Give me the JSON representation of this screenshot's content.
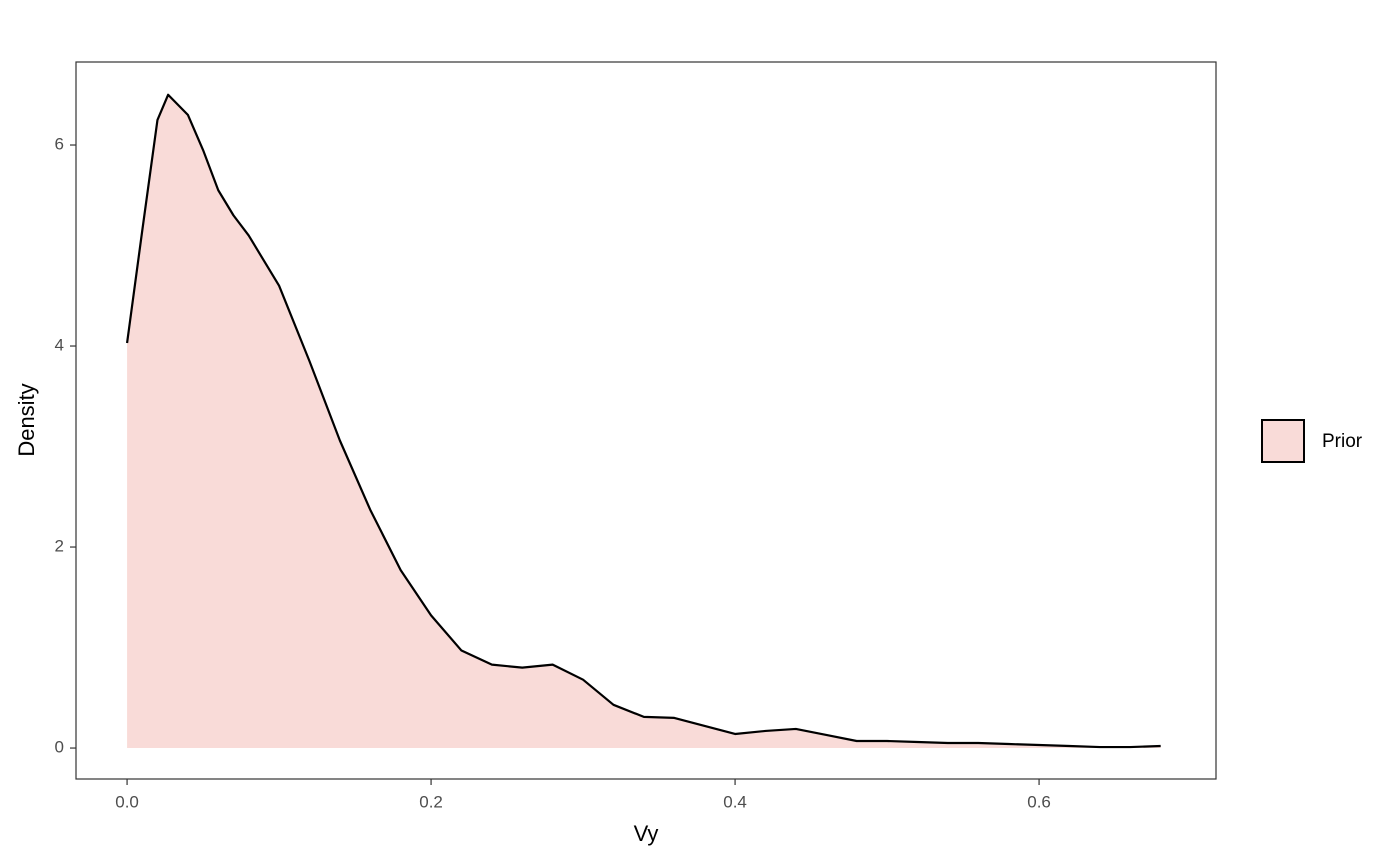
{
  "chart_data": {
    "type": "area",
    "x_label": "Vy",
    "y_label": "Density",
    "x": [
      0,
      0.01,
      0.02,
      0.027,
      0.04,
      0.05,
      0.06,
      0.07,
      0.08,
      0.1,
      0.12,
      0.14,
      0.16,
      0.18,
      0.2,
      0.22,
      0.24,
      0.26,
      0.28,
      0.3,
      0.32,
      0.34,
      0.36,
      0.38,
      0.4,
      0.42,
      0.44,
      0.46,
      0.48,
      0.5,
      0.52,
      0.54,
      0.56,
      0.58,
      0.6,
      0.62,
      0.64,
      0.66,
      0.68
    ],
    "series": [
      {
        "name": "Prior",
        "color": "#f9dbd8",
        "line_color": "#000000",
        "values": [
          4.03,
          5.15,
          6.25,
          6.5,
          6.3,
          5.95,
          5.55,
          5.3,
          5.1,
          4.6,
          3.85,
          3.06,
          2.37,
          1.77,
          1.32,
          0.97,
          0.83,
          0.8,
          0.83,
          0.68,
          0.43,
          0.31,
          0.3,
          0.22,
          0.14,
          0.17,
          0.19,
          0.13,
          0.07,
          0.07,
          0.06,
          0.05,
          0.05,
          0.04,
          0.03,
          0.02,
          0.01,
          0.01,
          0.02
        ]
      }
    ],
    "xlim": [
      -0.0336,
      0.7164
    ],
    "ylim": [
      -0.308,
      6.826
    ],
    "xticks": [
      {
        "value": 0,
        "label": "0.0"
      },
      0.2,
      0.4,
      0.6
    ],
    "yticks": [
      0,
      2,
      4,
      6
    ],
    "grid": false,
    "legend": "right"
  }
}
